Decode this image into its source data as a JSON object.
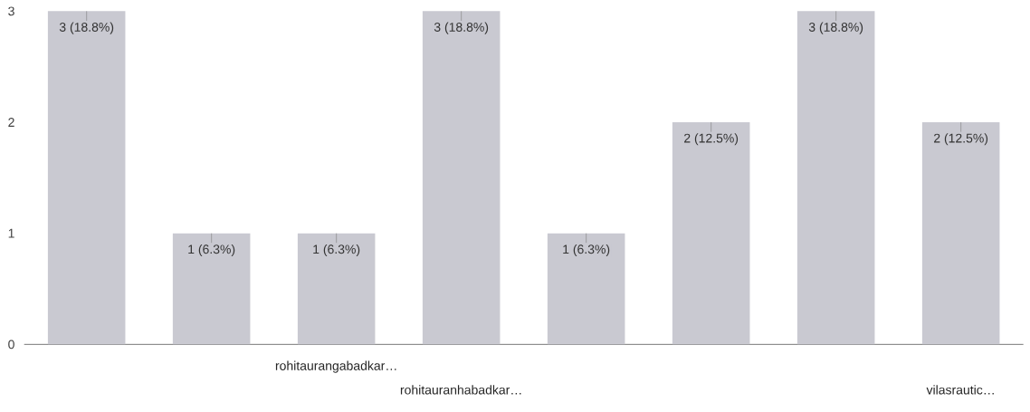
{
  "chart_data": {
    "type": "bar",
    "categories": [
      null,
      null,
      "rohitaurangabadkar…",
      "rohitauranhabadkar…",
      null,
      null,
      null,
      "vilasrautic…"
    ],
    "values": [
      3,
      1,
      1,
      3,
      1,
      2,
      3,
      2
    ],
    "color": "#c9c9d1",
    "value_labels": [
      "3 (18.8%)",
      "1 (6.3%)",
      "1 (6.3%)",
      "3 (18.8%)",
      "1 (6.3%)",
      "2 (12.5%)",
      "3 (18.8%)",
      "2 (12.5%)"
    ],
    "ylim": [
      0,
      3
    ],
    "yticks": [
      0,
      1,
      2,
      3
    ],
    "grid": false
  }
}
